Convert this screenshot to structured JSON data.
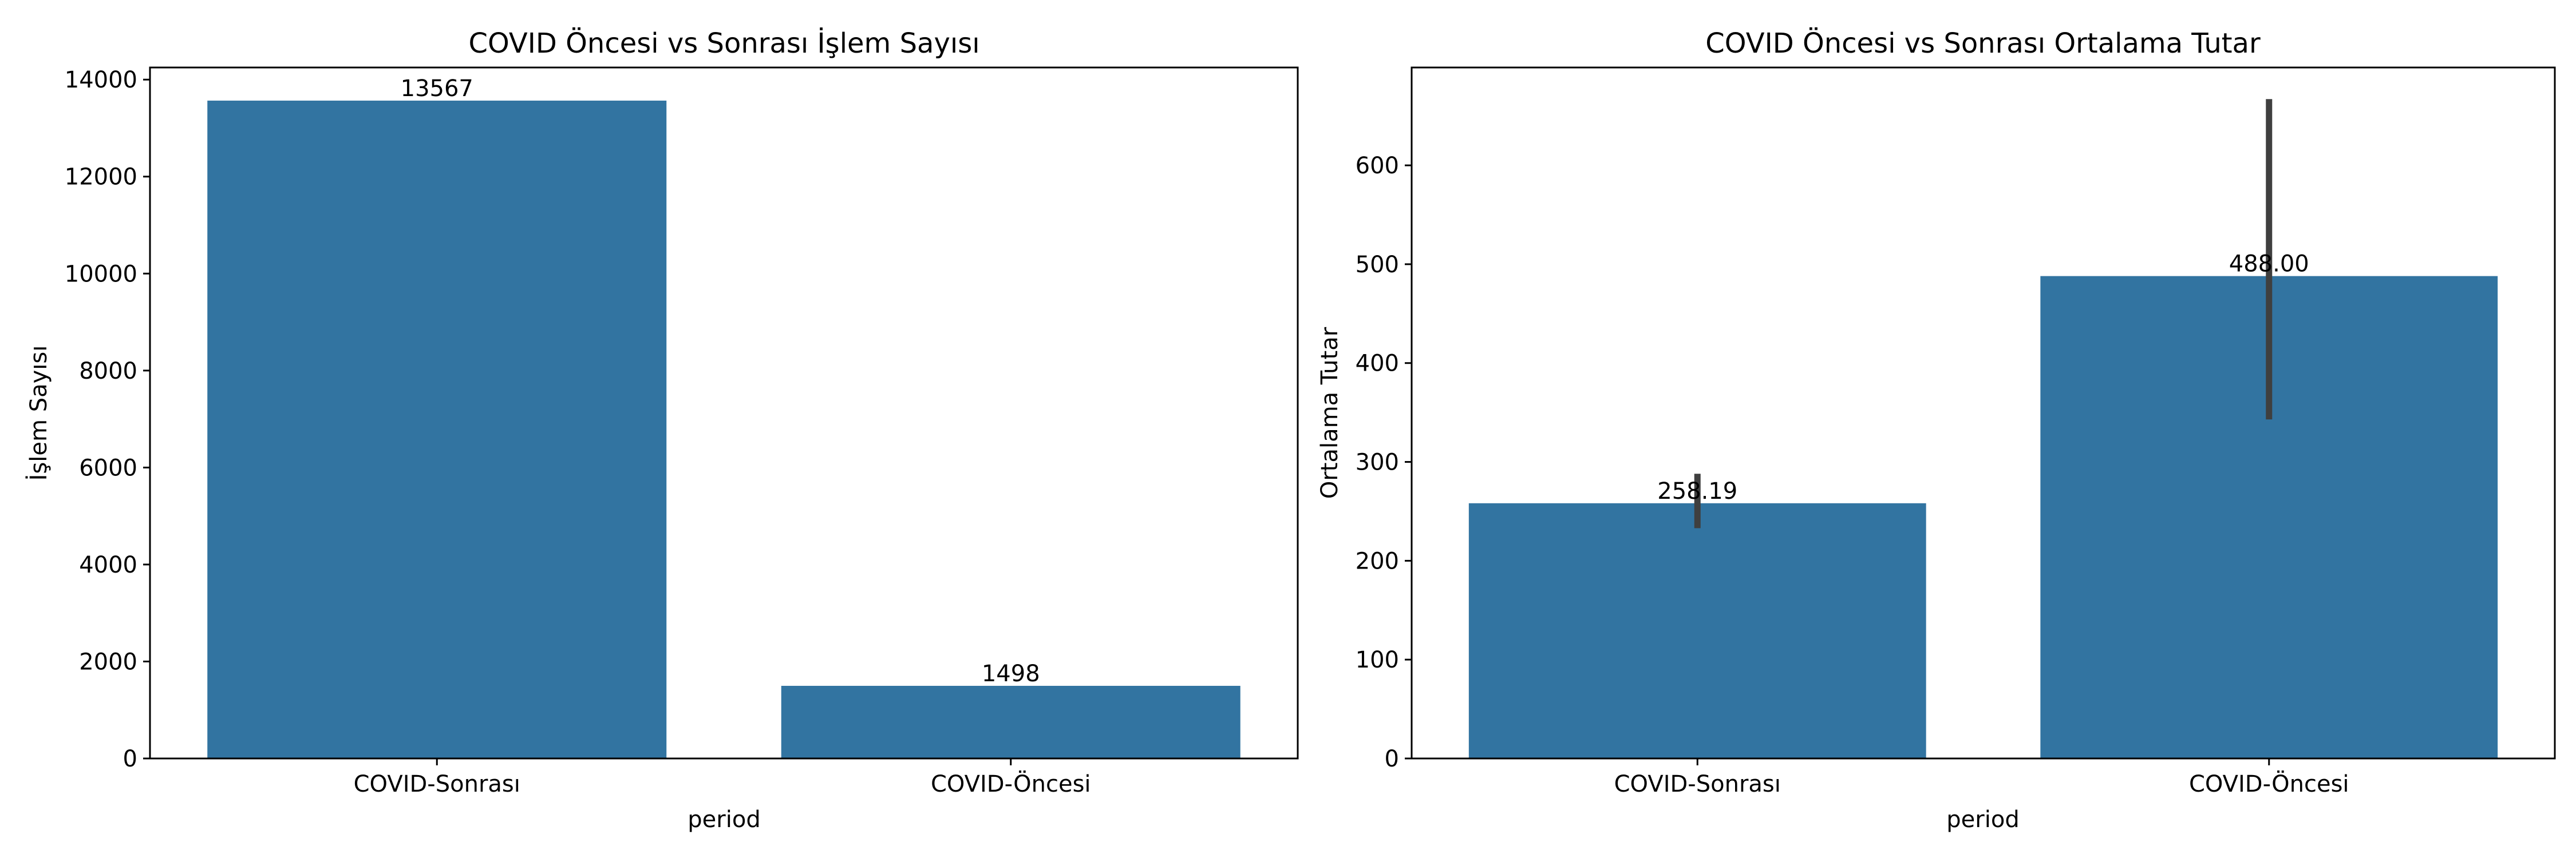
{
  "charts": [
    {
      "title": "COVID Öncesi vs Sonrası İşlem Sayısı",
      "xlabel": "period",
      "ylabel": "İşlem Sayısı"
    },
    {
      "title": "COVID Öncesi vs Sonrası Ortalama Tutar",
      "xlabel": "period",
      "ylabel": "Ortalama Tutar"
    }
  ],
  "chart_data": [
    {
      "type": "bar",
      "title": "COVID Öncesi vs Sonrası İşlem Sayısı",
      "xlabel": "period",
      "ylabel": "İşlem Sayısı",
      "categories": [
        "COVID-Sonrası",
        "COVID-Öncesi"
      ],
      "values": [
        13567,
        1498
      ],
      "data_labels": [
        "13567",
        "1498"
      ],
      "ylim": [
        0,
        14250
      ],
      "yticks": [
        0,
        2000,
        4000,
        6000,
        8000,
        10000,
        12000,
        14000
      ],
      "grid": false,
      "color": "#3274a1"
    },
    {
      "type": "bar",
      "title": "COVID Öncesi vs Sonrası Ortalama Tutar",
      "xlabel": "period",
      "ylabel": "Ortalama Tutar",
      "categories": [
        "COVID-Sonrası",
        "COVID-Öncesi"
      ],
      "values": [
        258.19,
        488.0
      ],
      "data_labels": [
        "258.19",
        "488.00"
      ],
      "error_bars": [
        [
          233,
          288
        ],
        [
          343,
          667
        ]
      ],
      "ylim": [
        0,
        699
      ],
      "yticks": [
        0,
        100,
        200,
        300,
        400,
        500,
        600
      ],
      "grid": false,
      "color": "#3274a1",
      "error_color": "#3f3f3f"
    }
  ]
}
